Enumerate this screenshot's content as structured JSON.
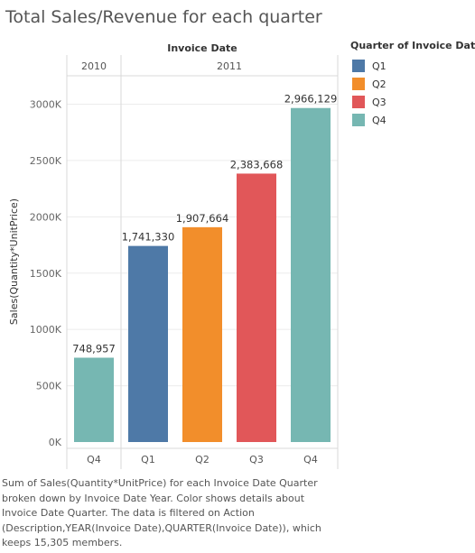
{
  "title": "Total Sales/Revenue for each quarter",
  "caption": "Sum of Sales(Quantity*UnitPrice) for each Invoice Date Quarter broken down by Invoice Date Year.  Color shows details about Invoice Date Quarter. The data is filtered on Action (Description,YEAR(Invoice Date),QUARTER(Invoice Date)), which keeps 15,305 members.",
  "legend": {
    "title": "Quarter of Invoice Date",
    "items": [
      {
        "label": "Q1",
        "color": "#4e79a7"
      },
      {
        "label": "Q2",
        "color": "#f28e2b"
      },
      {
        "label": "Q3",
        "color": "#e15759"
      },
      {
        "label": "Q4",
        "color": "#76b7b2"
      }
    ]
  },
  "chart_data": {
    "type": "bar",
    "column_header": "Invoice Date",
    "ylabel": "Sales(Quantity*UnitPrice)",
    "ylim": [
      0,
      3200000
    ],
    "yticks": [
      0,
      500000,
      1000000,
      1500000,
      2000000,
      2500000,
      3000000
    ],
    "ytick_labels": [
      "0K",
      "500K",
      "1000K",
      "1500K",
      "2000K",
      "2500K",
      "3000K"
    ],
    "grid": true,
    "groups": [
      {
        "year": "2010",
        "bars": [
          {
            "quarter": "Q4",
            "value": 748957,
            "label": "748,957",
            "color": "#76b7b2"
          }
        ]
      },
      {
        "year": "2011",
        "bars": [
          {
            "quarter": "Q1",
            "value": 1741330,
            "label": "1,741,330",
            "color": "#4e79a7"
          },
          {
            "quarter": "Q2",
            "value": 1907664,
            "label": "1,907,664",
            "color": "#f28e2b"
          },
          {
            "quarter": "Q3",
            "value": 2383668,
            "label": "2,383,668",
            "color": "#e15759"
          },
          {
            "quarter": "Q4",
            "value": 2966129,
            "label": "2,966,129",
            "color": "#76b7b2"
          }
        ]
      }
    ]
  }
}
